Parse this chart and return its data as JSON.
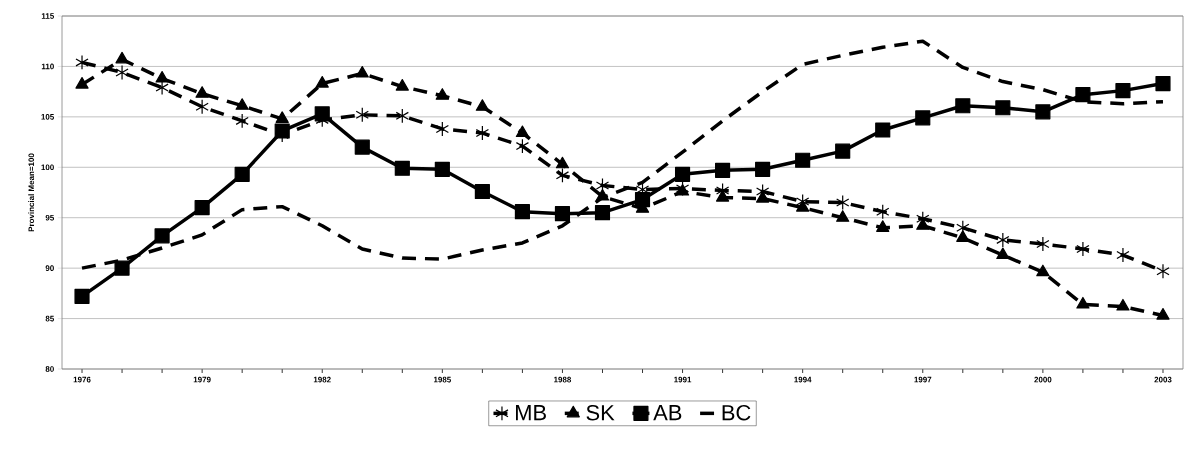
{
  "chart_data": {
    "type": "line",
    "ylabel": "Provincial Mean=100",
    "categories": [
      "1976",
      null,
      null,
      "1979",
      null,
      null,
      "1982",
      null,
      null,
      "1985",
      null,
      null,
      "1988",
      null,
      null,
      "1991",
      null,
      null,
      "1994",
      null,
      null,
      "1997",
      null,
      null,
      "2000",
      null,
      null,
      "2003"
    ],
    "ylim": [
      80,
      115
    ],
    "yticks": [
      80,
      85,
      90,
      95,
      100,
      105,
      110,
      115
    ],
    "grid": "y",
    "legend": "bottom",
    "series": [
      {
        "name": "MB",
        "color": "#000000",
        "marker": "cross",
        "line_style": "dashed",
        "values": [
          110.4,
          109.4,
          107.9,
          106.0,
          104.6,
          103.2,
          104.7,
          105.2,
          105.1,
          103.8,
          103.4,
          102.1,
          99.2,
          98.2,
          97.8,
          97.9,
          97.7,
          97.6,
          96.6,
          96.5,
          95.6,
          94.9,
          94.0,
          92.8,
          92.4,
          91.9,
          91.3,
          89.7
        ]
      },
      {
        "name": "SK",
        "color": "#000000",
        "marker": "triangle",
        "line_style": "dashed",
        "values": [
          108.2,
          110.7,
          108.8,
          107.3,
          106.1,
          104.8,
          108.3,
          109.3,
          108.0,
          107.1,
          106.0,
          103.4,
          100.3,
          97.1,
          95.9,
          97.6,
          97.0,
          96.9,
          96.0,
          95.0,
          94.0,
          94.2,
          93.0,
          91.3,
          89.6,
          86.4,
          86.2,
          85.3
        ]
      },
      {
        "name": "AB",
        "color": "#000000",
        "marker": "square",
        "line_style": "solid",
        "values": [
          87.2,
          90.0,
          93.2,
          96.0,
          99.3,
          103.6,
          105.3,
          102.0,
          99.9,
          99.8,
          97.6,
          95.6,
          95.4,
          95.5,
          96.8,
          99.3,
          99.7,
          99.8,
          100.7,
          101.6,
          103.7,
          104.9,
          106.1,
          105.9,
          105.5,
          107.2,
          107.6,
          108.3
        ]
      },
      {
        "name": "BC",
        "color": "#000000",
        "marker": "none",
        "line_style": "dashed",
        "values": [
          90.0,
          90.8,
          92.0,
          93.3,
          95.8,
          96.1,
          94.2,
          91.9,
          91.0,
          90.9,
          91.8,
          92.5,
          94.2,
          97.0,
          98.5,
          101.5,
          104.6,
          107.5,
          110.2,
          111.1,
          111.9,
          112.5,
          109.9,
          108.5,
          107.7,
          106.5,
          106.3,
          106.5
        ]
      }
    ]
  }
}
